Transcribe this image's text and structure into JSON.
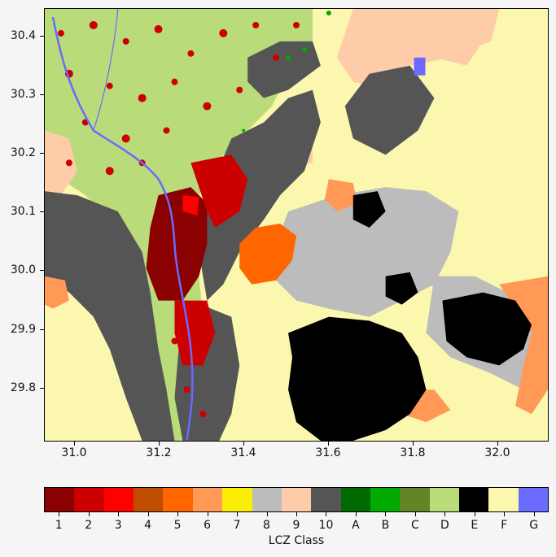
{
  "map": {
    "y_ticks": [
      "30.4",
      "30.3",
      "30.2",
      "30.1",
      "30.0",
      "29.9",
      "29.8"
    ],
    "x_ticks": [
      "31.0",
      "31.2",
      "31.4",
      "31.6",
      "31.8",
      "32.0"
    ],
    "lat_range": [
      29.71,
      30.45
    ],
    "lon_range": [
      30.93,
      32.12
    ]
  },
  "colorbar": {
    "label": "LCZ Class",
    "classes": [
      {
        "label": "1",
        "color": "#8b0000"
      },
      {
        "label": "2",
        "color": "#cc0000"
      },
      {
        "label": "3",
        "color": "#ff0000"
      },
      {
        "label": "4",
        "color": "#bf4d00"
      },
      {
        "label": "5",
        "color": "#ff6600"
      },
      {
        "label": "6",
        "color": "#ff9955"
      },
      {
        "label": "7",
        "color": "#faee05"
      },
      {
        "label": "8",
        "color": "#bcbcbc"
      },
      {
        "label": "9",
        "color": "#ffccaa"
      },
      {
        "label": "10",
        "color": "#555555"
      },
      {
        "label": "A",
        "color": "#006a00"
      },
      {
        "label": "B",
        "color": "#00aa00"
      },
      {
        "label": "C",
        "color": "#648525"
      },
      {
        "label": "D",
        "color": "#b9db79"
      },
      {
        "label": "E",
        "color": "#000000"
      },
      {
        "label": "F",
        "color": "#fbf7ae"
      },
      {
        "label": "G",
        "color": "#6a6aff"
      }
    ]
  }
}
